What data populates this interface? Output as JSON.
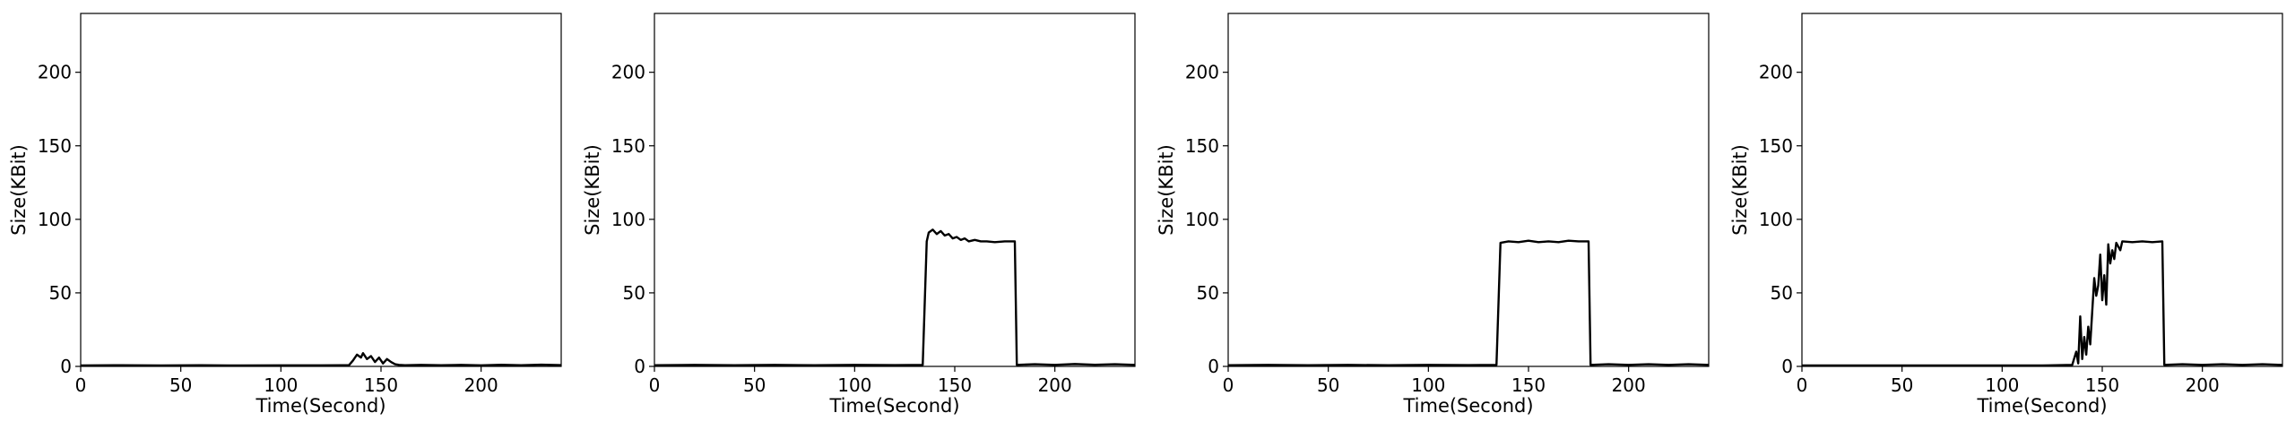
{
  "chart_data": [
    {
      "type": "line",
      "xlabel": "Time(Second)",
      "ylabel": "Size(KBit)",
      "xlim": [
        0,
        240
      ],
      "ylim": [
        0,
        240
      ],
      "xticks": [
        0,
        50,
        100,
        150,
        200
      ],
      "yticks": [
        0,
        50,
        100,
        150,
        200
      ],
      "grid": false,
      "series": [
        {
          "color": "#000000",
          "points": [
            [
              0,
              0.6
            ],
            [
              20,
              0.8
            ],
            [
              40,
              0.6
            ],
            [
              60,
              0.8
            ],
            [
              80,
              0.6
            ],
            [
              100,
              0.7
            ],
            [
              120,
              0.7
            ],
            [
              134,
              0.8
            ],
            [
              136,
              4
            ],
            [
              138,
              8
            ],
            [
              140,
              6
            ],
            [
              141,
              9
            ],
            [
              143,
              5
            ],
            [
              145,
              7
            ],
            [
              147,
              3
            ],
            [
              149,
              6
            ],
            [
              151,
              2
            ],
            [
              153,
              5
            ],
            [
              155,
              3
            ],
            [
              157,
              1.5
            ],
            [
              159,
              1
            ],
            [
              162,
              0.8
            ],
            [
              170,
              1
            ],
            [
              180,
              0.8
            ],
            [
              190,
              1
            ],
            [
              200,
              0.7
            ],
            [
              210,
              1.1
            ],
            [
              220,
              0.8
            ],
            [
              230,
              1.2
            ],
            [
              240,
              0.9
            ]
          ]
        }
      ]
    },
    {
      "type": "line",
      "xlabel": "Time(Second)",
      "ylabel": "Size(KBit)",
      "xlim": [
        0,
        240
      ],
      "ylim": [
        0,
        240
      ],
      "xticks": [
        0,
        50,
        100,
        150,
        200
      ],
      "yticks": [
        0,
        50,
        100,
        150,
        200
      ],
      "grid": false,
      "series": [
        {
          "color": "#000000",
          "points": [
            [
              0,
              0.8
            ],
            [
              20,
              1
            ],
            [
              40,
              0.8
            ],
            [
              60,
              1
            ],
            [
              80,
              0.8
            ],
            [
              100,
              1
            ],
            [
              120,
              0.9
            ],
            [
              134,
              1
            ],
            [
              136,
              85
            ],
            [
              137,
              91
            ],
            [
              139,
              93
            ],
            [
              141,
              90
            ],
            [
              143,
              92
            ],
            [
              145,
              89
            ],
            [
              147,
              90
            ],
            [
              149,
              87
            ],
            [
              151,
              88
            ],
            [
              153,
              86
            ],
            [
              155,
              87
            ],
            [
              157,
              85
            ],
            [
              160,
              86
            ],
            [
              163,
              85
            ],
            [
              166,
              85
            ],
            [
              170,
              84.5
            ],
            [
              175,
              85
            ],
            [
              180,
              85
            ],
            [
              181,
              1
            ],
            [
              190,
              1.5
            ],
            [
              200,
              1
            ],
            [
              210,
              1.6
            ],
            [
              220,
              1.1
            ],
            [
              230,
              1.5
            ],
            [
              240,
              1
            ]
          ]
        }
      ]
    },
    {
      "type": "line",
      "xlabel": "Time(Second)",
      "ylabel": "Size(KBit)",
      "xlim": [
        0,
        240
      ],
      "ylim": [
        0,
        240
      ],
      "xticks": [
        0,
        50,
        100,
        150,
        200
      ],
      "yticks": [
        0,
        50,
        100,
        150,
        200
      ],
      "grid": false,
      "series": [
        {
          "color": "#000000",
          "points": [
            [
              0,
              0.8
            ],
            [
              20,
              1
            ],
            [
              40,
              0.8
            ],
            [
              60,
              1
            ],
            [
              80,
              0.8
            ],
            [
              100,
              1
            ],
            [
              120,
              0.9
            ],
            [
              134,
              1
            ],
            [
              136,
              84
            ],
            [
              140,
              85
            ],
            [
              145,
              84.5
            ],
            [
              150,
              85.5
            ],
            [
              155,
              84.5
            ],
            [
              160,
              85
            ],
            [
              165,
              84.5
            ],
            [
              170,
              85.5
            ],
            [
              175,
              85
            ],
            [
              180,
              85
            ],
            [
              181,
              1
            ],
            [
              190,
              1.5
            ],
            [
              200,
              1
            ],
            [
              210,
              1.5
            ],
            [
              220,
              1
            ],
            [
              230,
              1.5
            ],
            [
              240,
              1
            ]
          ]
        }
      ]
    },
    {
      "type": "line",
      "xlabel": "Time(Second)",
      "ylabel": "Size(KBit)",
      "xlim": [
        0,
        240
      ],
      "ylim": [
        0,
        240
      ],
      "xticks": [
        0,
        50,
        100,
        150,
        200
      ],
      "yticks": [
        0,
        50,
        100,
        150,
        200
      ],
      "grid": false,
      "series": [
        {
          "color": "#000000",
          "points": [
            [
              0,
              0.6
            ],
            [
              20,
              0.6
            ],
            [
              40,
              0.6
            ],
            [
              60,
              0.6
            ],
            [
              80,
              0.6
            ],
            [
              100,
              0.6
            ],
            [
              120,
              0.6
            ],
            [
              135,
              1
            ],
            [
              137,
              10
            ],
            [
              138,
              2
            ],
            [
              139,
              34
            ],
            [
              140,
              5
            ],
            [
              141,
              20
            ],
            [
              142,
              8
            ],
            [
              143,
              27
            ],
            [
              144,
              15
            ],
            [
              146,
              60
            ],
            [
              147,
              48
            ],
            [
              148,
              55
            ],
            [
              149,
              76
            ],
            [
              150,
              45
            ],
            [
              151,
              62
            ],
            [
              152,
              42
            ],
            [
              153,
              83
            ],
            [
              154,
              70
            ],
            [
              155,
              79
            ],
            [
              156,
              73
            ],
            [
              157,
              84
            ],
            [
              159,
              79
            ],
            [
              160,
              85
            ],
            [
              165,
              84.5
            ],
            [
              170,
              85
            ],
            [
              175,
              84.5
            ],
            [
              180,
              85
            ],
            [
              181,
              1
            ],
            [
              190,
              1.5
            ],
            [
              200,
              1
            ],
            [
              210,
              1.5
            ],
            [
              220,
              1
            ],
            [
              230,
              1.5
            ],
            [
              240,
              1
            ]
          ]
        }
      ]
    }
  ]
}
